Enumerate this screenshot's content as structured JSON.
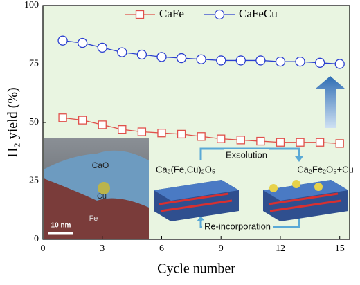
{
  "chart_data": {
    "type": "line",
    "x": [
      1,
      2,
      3,
      4,
      5,
      6,
      7,
      8,
      9,
      10,
      11,
      12,
      13,
      14,
      15
    ],
    "series": [
      {
        "name": "CaFe",
        "color": "#e0504a",
        "marker": "square",
        "values": [
          52,
          51,
          49,
          47,
          46,
          45.5,
          45,
          44,
          43,
          42.5,
          42,
          41.5,
          41.5,
          41.5,
          41
        ]
      },
      {
        "name": "CaFeCu",
        "color": "#2a3fd0",
        "marker": "circle",
        "values": [
          85,
          84,
          82,
          80,
          79,
          78,
          77.5,
          77,
          76.5,
          76.5,
          76.5,
          76,
          76,
          75.5,
          75
        ]
      }
    ],
    "xlabel": "Cycle number",
    "ylabel": "H₂ yield (%)",
    "xlim": [
      0,
      15.5
    ],
    "ylim": [
      0,
      100
    ],
    "xticks": [
      0,
      3,
      6,
      9,
      12,
      15
    ],
    "yticks": [
      0,
      25,
      50,
      75,
      100
    ],
    "legend": "top",
    "annotations": {
      "tem": [
        "CaO",
        "Cu",
        "Fe",
        "10 nm"
      ],
      "scheme": [
        "Ca₂(Fe,Cu)₂O₅",
        "Exsolution",
        "Ca₂Fe₂O₅+Cu",
        "Re-incorporation"
      ]
    }
  }
}
